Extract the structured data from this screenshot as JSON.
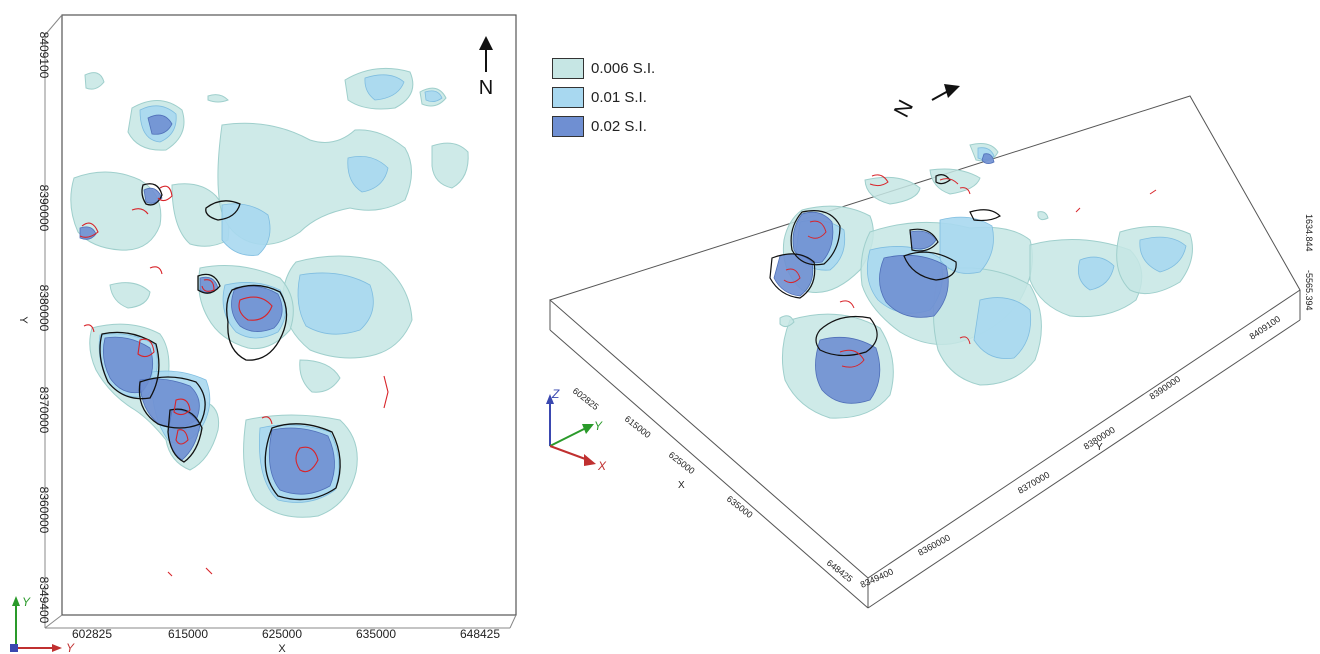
{
  "plan_view": {
    "north_label": "N",
    "x_axis_label": "X",
    "y_axis_label": "Y",
    "x_ticks": [
      "602825",
      "615000",
      "625000",
      "635000",
      "648425"
    ],
    "y_ticks": [
      "8409100",
      "8390000",
      "8380000",
      "8370000",
      "8360000",
      "8349400"
    ],
    "triad": {
      "y": "Y",
      "x": "Y"
    }
  },
  "legend": {
    "items": [
      {
        "label": "0.006 S.I.",
        "color": "#c6e6e4"
      },
      {
        "label": "0.01 S.I.",
        "color": "#a8d8f0"
      },
      {
        "label": "0.02 S.I.",
        "color": "#6f8fd2"
      }
    ]
  },
  "perspective_view": {
    "north_label": "N",
    "x_axis_label": "X",
    "y_axis_label": "Y",
    "x_ticks": [
      "602825",
      "615000",
      "625000",
      "635000",
      "648425"
    ],
    "y_ticks": [
      "8349400",
      "8360000",
      "8370000",
      "8380000",
      "8390000",
      "8409100"
    ],
    "z_ticks": [
      "1634.844",
      "-5565.394"
    ],
    "triad": {
      "z": "Z",
      "y": "Y",
      "x": "X"
    }
  }
}
